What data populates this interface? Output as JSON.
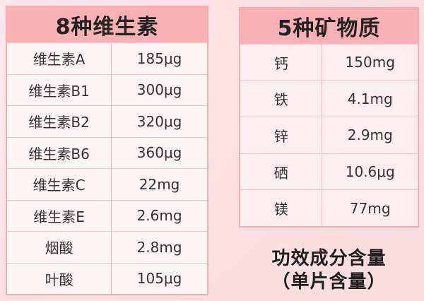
{
  "colors": {
    "page_background": "#fcdfe2",
    "header_background": "#f9b1b4",
    "vitamins_cell_background": "#fdf4f5",
    "minerals_cell_background": "#fdeff1",
    "table_border": "#f3aeb3",
    "grid_line": "#f6c4c7",
    "text": "#333333"
  },
  "vitamins": {
    "title": "8种维生素",
    "rows": [
      {
        "label": "维生素A",
        "value": "185μg"
      },
      {
        "label": "维生素B1",
        "value": "300μg"
      },
      {
        "label": "维生素B2",
        "value": "320μg"
      },
      {
        "label": "维生素B6",
        "value": "360μg"
      },
      {
        "label": "维生素C",
        "value": "22mg"
      },
      {
        "label": "维生素E",
        "value": "2.6mg"
      },
      {
        "label": "烟酸",
        "value": "2.8mg"
      },
      {
        "label": "叶酸",
        "value": "105μg"
      }
    ]
  },
  "minerals": {
    "title": "5种矿物质",
    "rows": [
      {
        "label": "钙",
        "value": "150mg"
      },
      {
        "label": "铁",
        "value": "4.1mg"
      },
      {
        "label": "锌",
        "value": "2.9mg"
      },
      {
        "label": "硒",
        "value": "10.6μg"
      },
      {
        "label": "镁",
        "value": "77mg"
      }
    ]
  },
  "footnote": {
    "line1": "功效成分含量",
    "line2": "（单片含量）"
  }
}
